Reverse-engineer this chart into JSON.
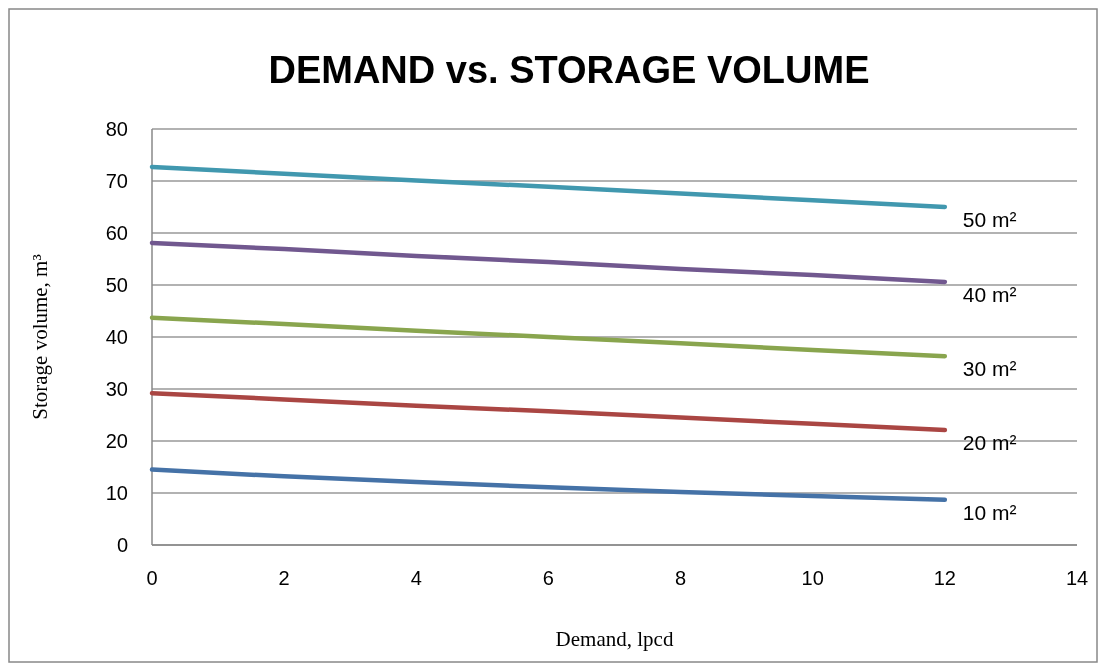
{
  "chart_data": {
    "type": "line",
    "title": "DEMAND vs. STORAGE VOLUME",
    "xlabel": "Demand, lpcd",
    "ylabel": "Storage volume, m³",
    "x": [
      0,
      2,
      4,
      6,
      8,
      10,
      12
    ],
    "series": [
      {
        "name": "50 m²",
        "color": "#4198af",
        "values": [
          72.7,
          71.4,
          70.1,
          68.9,
          67.6,
          66.3,
          65.0
        ]
      },
      {
        "name": "40 m²",
        "color": "#71588f",
        "values": [
          58.1,
          56.9,
          55.6,
          54.4,
          53.1,
          51.9,
          50.6
        ]
      },
      {
        "name": "30 m²",
        "color": "#89a54e",
        "values": [
          43.7,
          42.5,
          41.2,
          40.0,
          38.8,
          37.5,
          36.3
        ]
      },
      {
        "name": "20 m²",
        "color": "#aa4643",
        "values": [
          29.2,
          28.0,
          26.8,
          25.7,
          24.5,
          23.3,
          22.1
        ]
      },
      {
        "name": "10 m²",
        "color": "#4572a7",
        "values": [
          14.5,
          13.2,
          12.1,
          11.1,
          10.2,
          9.4,
          8.7
        ]
      }
    ],
    "xlim": [
      0,
      14
    ],
    "xticks": [
      0,
      2,
      4,
      6,
      8,
      10,
      12,
      14
    ],
    "ylim": [
      0,
      80
    ],
    "yticks": [
      0,
      10,
      20,
      30,
      40,
      50,
      60,
      70,
      80
    ],
    "grid": "y",
    "marker": "none",
    "line_style": "solid"
  }
}
